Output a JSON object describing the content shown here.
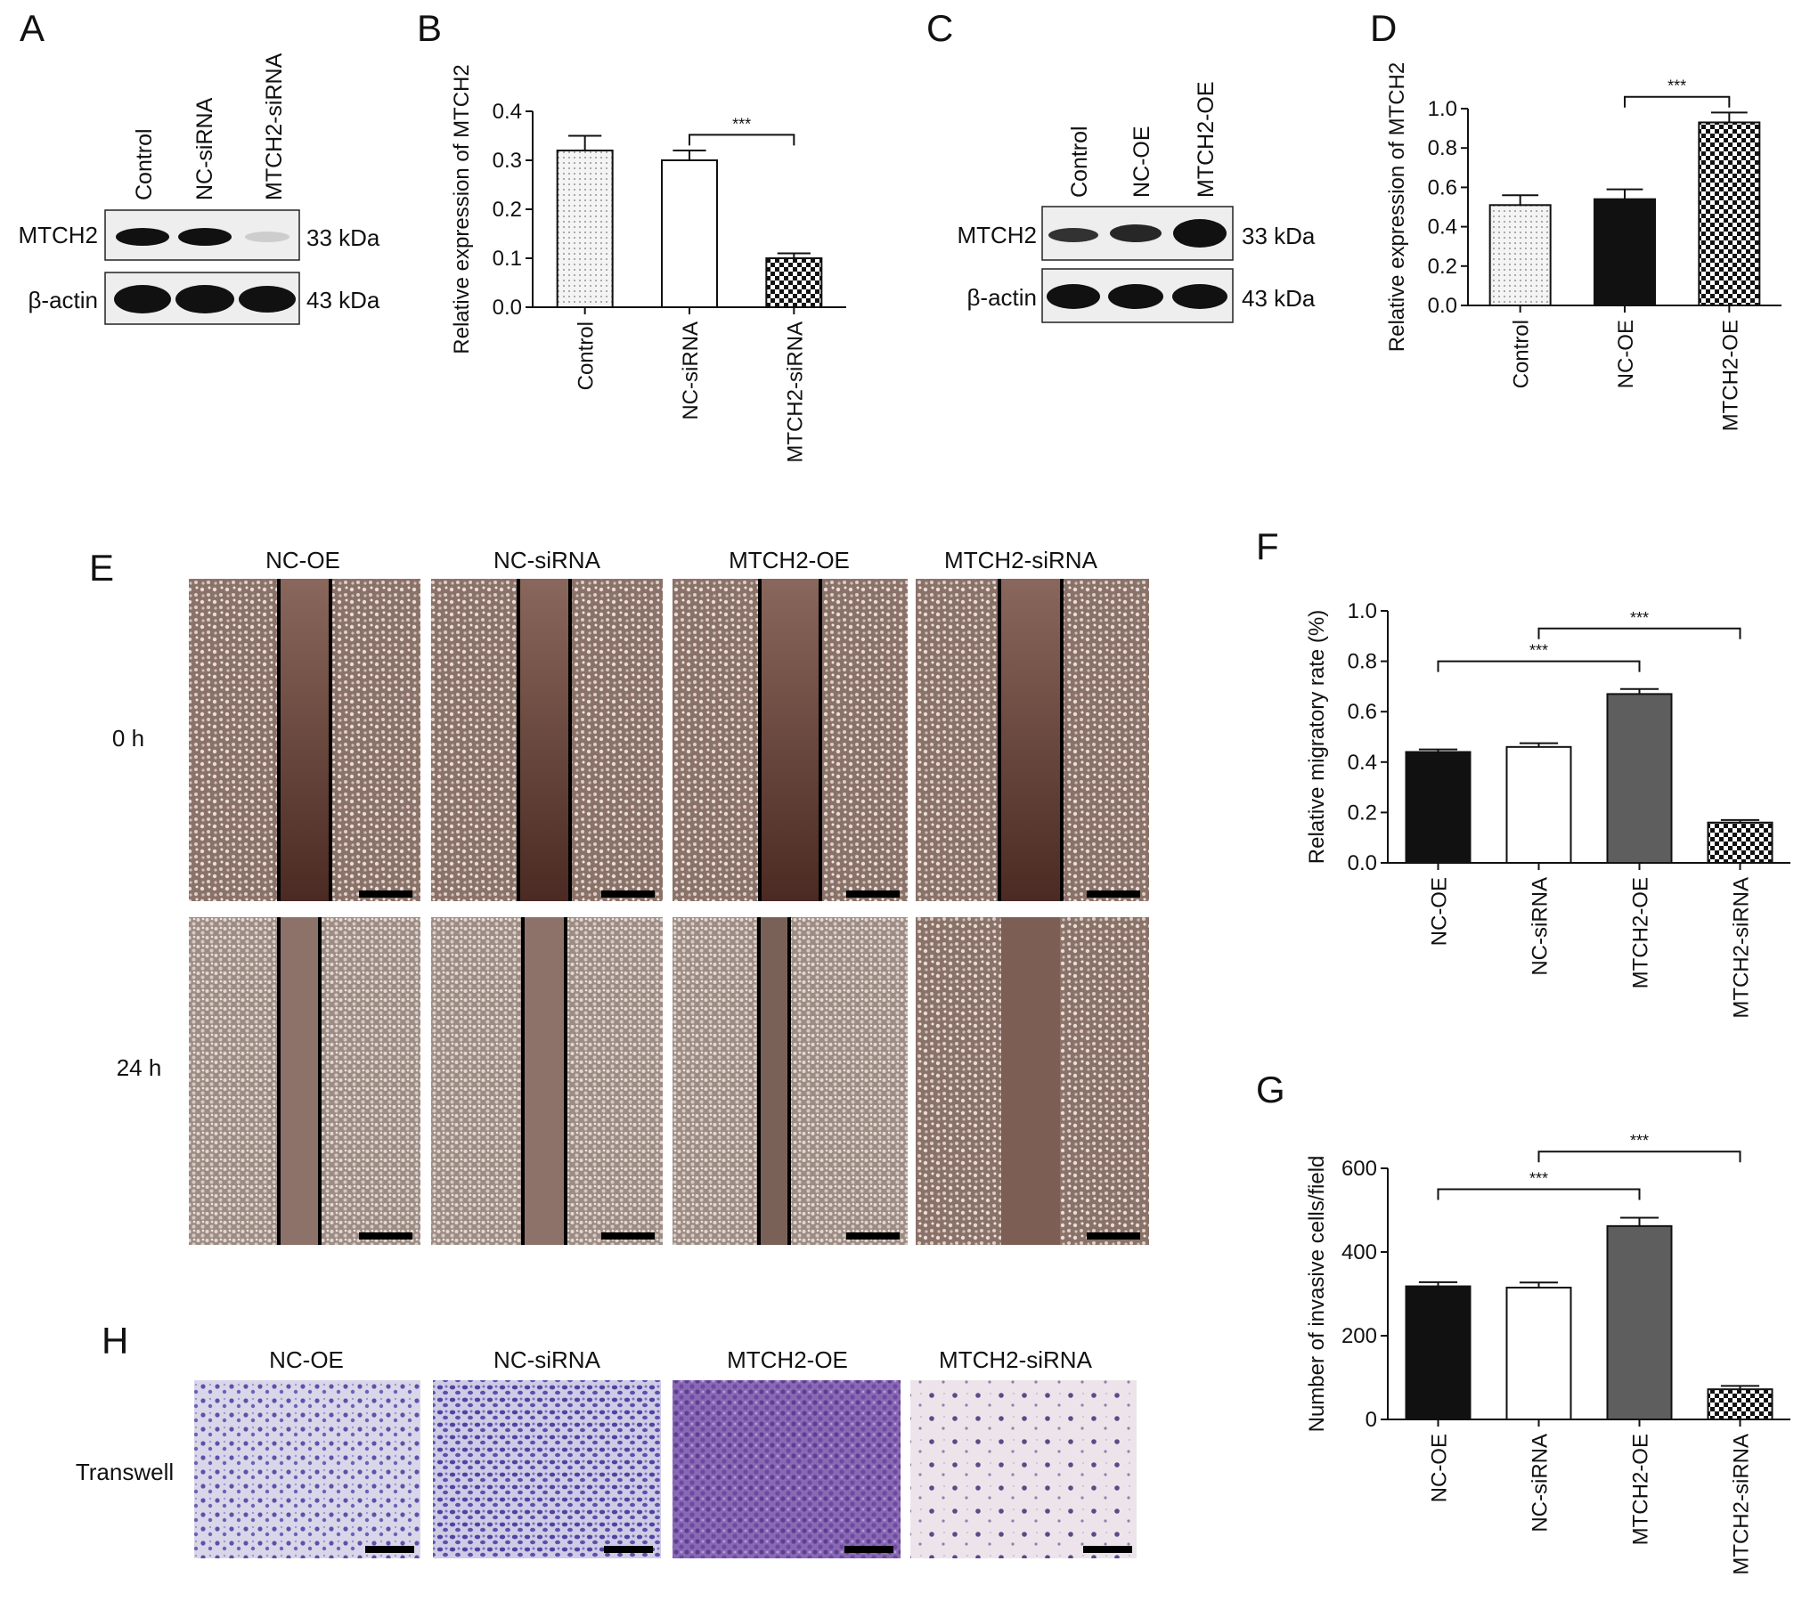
{
  "panels": {
    "A": {
      "letter": "A",
      "lanes": [
        "Control",
        "NC-siRNA",
        "MTCH2-siRNA"
      ],
      "rows": [
        {
          "label": "MTCH2",
          "kda": "33 kDa",
          "intensity": [
            1.0,
            1.0,
            0.15
          ]
        },
        {
          "label": "β-actin",
          "kda": "43 kDa",
          "intensity": [
            1.0,
            1.0,
            1.0
          ]
        }
      ]
    },
    "B": {
      "letter": "B"
    },
    "C": {
      "letter": "C",
      "lanes": [
        "Control",
        "NC-OE",
        "MTCH2-OE"
      ],
      "rows": [
        {
          "label": "MTCH2",
          "kda": "33 kDa",
          "intensity": [
            0.75,
            0.85,
            1.0
          ]
        },
        {
          "label": "β-actin",
          "kda": "43 kDa",
          "intensity": [
            1.0,
            1.0,
            1.0
          ]
        }
      ]
    },
    "D": {
      "letter": "D"
    },
    "E": {
      "letter": "E",
      "columns": [
        "NC-OE",
        "NC-siRNA",
        "MTCH2-OE",
        "MTCH2-siRNA"
      ],
      "rows": [
        "0 h",
        "24 h"
      ]
    },
    "F": {
      "letter": "F"
    },
    "G": {
      "letter": "G"
    },
    "H": {
      "letter": "H",
      "columns": [
        "NC-OE",
        "NC-siRNA",
        "MTCH2-OE",
        "MTCH2-siRNA"
      ],
      "row_label": "Transwell"
    }
  },
  "chart_data": [
    {
      "id": "B",
      "type": "bar",
      "categories": [
        "Control",
        "NC-siRNA",
        "MTCH2-siRNA"
      ],
      "values": [
        0.32,
        0.3,
        0.1
      ],
      "errors": [
        0.03,
        0.02,
        0.01
      ],
      "fills": [
        "dots",
        "white",
        "checker"
      ],
      "ylabel": "Relative expression of MTCH2",
      "ylim": [
        0,
        0.4
      ],
      "yticks": [
        "0.0",
        "0.1",
        "0.2",
        "0.3",
        "0.4"
      ],
      "significance": [
        {
          "from": 1,
          "to": 2,
          "label": "***"
        }
      ]
    },
    {
      "id": "D",
      "type": "bar",
      "categories": [
        "Control",
        "NC-OE",
        "MTCH2-OE"
      ],
      "values": [
        0.51,
        0.54,
        0.93
      ],
      "errors": [
        0.05,
        0.05,
        0.05
      ],
      "fills": [
        "dots",
        "black",
        "checker"
      ],
      "ylabel": "Relative expression of MTCH2",
      "ylim": [
        0,
        1.0
      ],
      "yticks": [
        "0.0",
        "0.2",
        "0.4",
        "0.6",
        "0.8",
        "1.0"
      ],
      "significance": [
        {
          "from": 1,
          "to": 2,
          "label": "***"
        }
      ]
    },
    {
      "id": "F",
      "type": "bar",
      "categories": [
        "NC-OE",
        "NC-siRNA",
        "MTCH2-OE",
        "MTCH2-siRNA"
      ],
      "values": [
        0.44,
        0.46,
        0.67,
        0.16
      ],
      "errors": [
        0.01,
        0.015,
        0.02,
        0.01
      ],
      "fills": [
        "black",
        "white",
        "gray",
        "checker"
      ],
      "ylabel": "Relative migratory rate (%)",
      "ylim": [
        0,
        1.0
      ],
      "yticks": [
        "0.0",
        "0.2",
        "0.4",
        "0.6",
        "0.8",
        "1.0"
      ],
      "significance": [
        {
          "from": 0,
          "to": 2,
          "label": "***",
          "level": 0.8
        },
        {
          "from": 1,
          "to": 3,
          "label": "***",
          "level": 0.93
        }
      ]
    },
    {
      "id": "G",
      "type": "bar",
      "categories": [
        "NC-OE",
        "NC-siRNA",
        "MTCH2-OE",
        "MTCH2-siRNA"
      ],
      "values": [
        318,
        315,
        462,
        72
      ],
      "errors": [
        10,
        12,
        20,
        8
      ],
      "fills": [
        "black",
        "white",
        "gray",
        "checker"
      ],
      "ylabel": "Number of invasive cells/field",
      "ylim": [
        0,
        600
      ],
      "yticks": [
        "0",
        "200",
        "400",
        "600"
      ],
      "significance": [
        {
          "from": 0,
          "to": 2,
          "label": "***",
          "level": 550
        },
        {
          "from": 1,
          "to": 3,
          "label": "***",
          "level": 640
        }
      ]
    }
  ]
}
